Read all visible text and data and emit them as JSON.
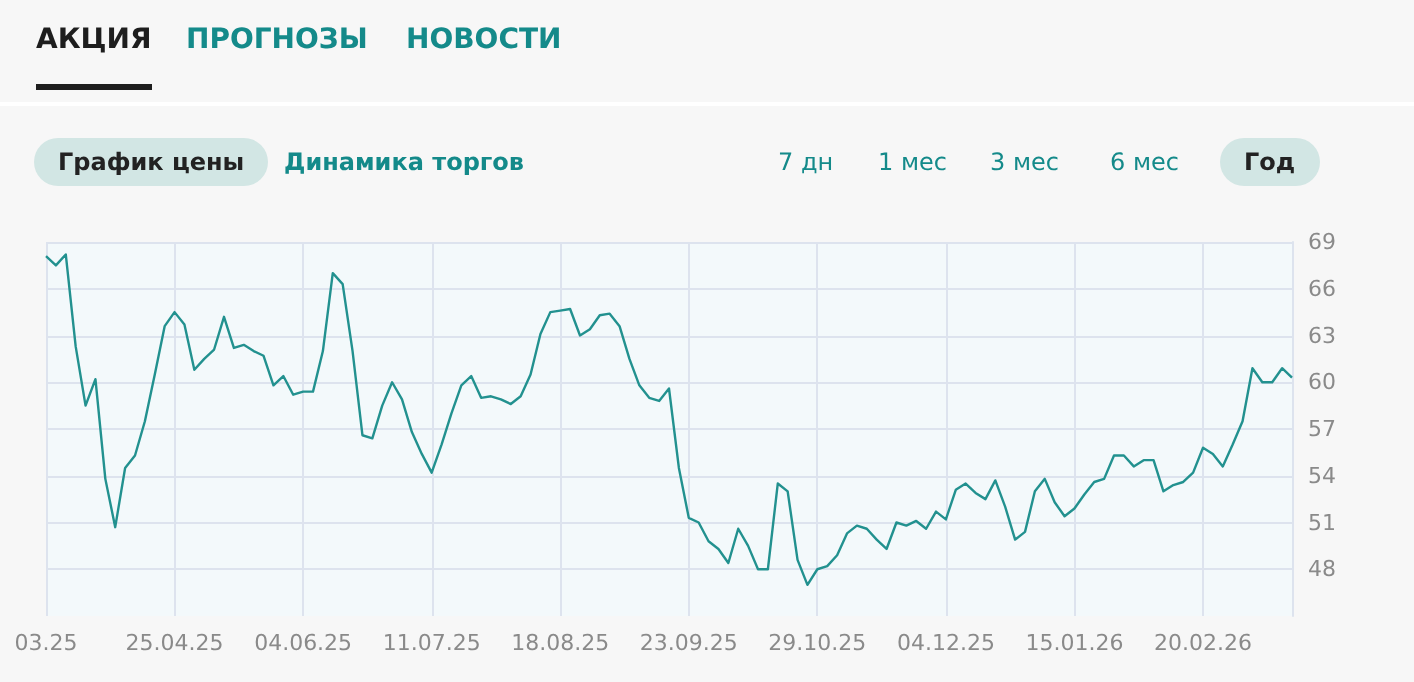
{
  "chart_data": {
    "type": "line",
    "categories": [
      "03.25",
      null,
      null,
      null,
      null,
      null,
      null,
      null,
      null,
      null,
      null,
      null,
      null,
      "25.04.25",
      null,
      null,
      null,
      null,
      null,
      null,
      null,
      null,
      null,
      null,
      null,
      null,
      "04.06.25",
      null,
      null,
      null,
      null,
      null,
      null,
      null,
      null,
      null,
      null,
      null,
      null,
      "11.07.25",
      null,
      null,
      null,
      null,
      null,
      null,
      null,
      null,
      null,
      null,
      null,
      null,
      "18.08.25",
      null,
      null,
      null,
      null,
      null,
      null,
      null,
      null,
      null,
      null,
      null,
      null,
      "23.09.25",
      null,
      null,
      null,
      null,
      null,
      null,
      null,
      null,
      null,
      null,
      null,
      null,
      "29.10.25",
      null,
      null,
      null,
      null,
      null,
      null,
      null,
      null,
      null,
      null,
      null,
      null,
      "04.12.25",
      null,
      null,
      null,
      null,
      null,
      null,
      null,
      null,
      null,
      null,
      null,
      null,
      "15.01.26",
      null,
      null,
      null,
      null,
      null,
      null,
      null,
      null,
      null,
      null,
      null,
      null,
      "20.02.26",
      null,
      null,
      null,
      null,
      null,
      null,
      null,
      null,
      null
    ],
    "series": [
      {
        "color": "#22918f",
        "values": [
          68.1,
          67.5,
          68.2,
          62.3,
          58.5,
          60.2,
          53.8,
          50.7,
          54.5,
          55.3,
          57.5,
          60.5,
          63.6,
          64.5,
          63.7,
          60.8,
          61.5,
          62.1,
          64.2,
          62.2,
          62.4,
          62.0,
          61.7,
          59.8,
          60.4,
          59.2,
          59.4,
          59.4,
          62.0,
          67.0,
          66.3,
          62.0,
          56.6,
          56.4,
          58.5,
          60.0,
          58.9,
          56.8,
          55.4,
          54.2,
          56.0,
          58.0,
          59.8,
          60.4,
          59.0,
          59.1,
          58.9,
          58.6,
          59.1,
          60.5,
          63.1,
          64.5,
          64.6,
          64.7,
          63.0,
          63.4,
          64.3,
          64.4,
          63.6,
          61.5,
          59.8,
          59.0,
          58.8,
          59.6,
          54.5,
          51.3,
          51.0,
          49.8,
          49.3,
          48.4,
          50.6,
          49.5,
          48.0,
          48.0,
          53.5,
          53.0,
          48.6,
          47.0,
          48.0,
          48.2,
          48.9,
          50.3,
          50.8,
          50.6,
          49.9,
          49.3,
          51.0,
          50.8,
          51.1,
          50.6,
          51.7,
          51.2,
          53.1,
          53.5,
          52.9,
          52.5,
          53.7,
          52.0,
          49.9,
          50.4,
          53.0,
          53.8,
          52.3,
          51.4,
          51.9,
          52.8,
          53.6,
          53.8,
          55.3,
          55.3,
          54.6,
          55.0,
          55.0,
          53.0,
          53.4,
          53.6,
          54.2,
          55.8,
          55.4,
          54.6,
          56.0,
          57.5,
          60.9,
          60.0,
          60.0,
          60.9,
          60.3
        ]
      }
    ],
    "ylim": [
      45,
      69
    ],
    "yticks": [
      48,
      51,
      54,
      57,
      60,
      63,
      66,
      69
    ],
    "grid": true,
    "marker": "none",
    "line_style": "solid",
    "annotations": [
      "АКЦИЯ",
      "ПРОГНОЗЫ",
      "НОВОСТИ",
      "График цены",
      "Динамика торгов",
      "7 дн",
      "1 мес",
      "3 мес",
      "6 мес",
      "Год"
    ]
  }
}
